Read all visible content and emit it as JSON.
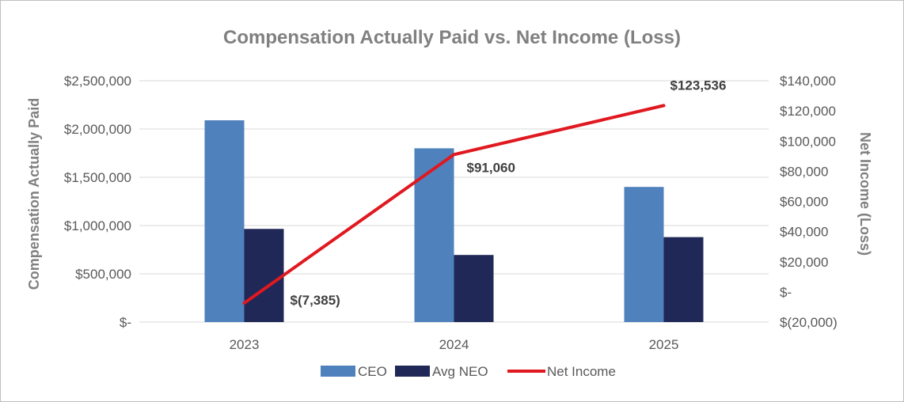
{
  "chart_data": {
    "type": "bar",
    "title": "Compensation Actually Paid vs. Net Income (Loss)",
    "categories": [
      "2023",
      "2024",
      "2025"
    ],
    "series": [
      {
        "name": "CEO",
        "type": "bar",
        "axis": "left",
        "color": "#4f81bd",
        "values": [
          2090000,
          1800000,
          1400000
        ]
      },
      {
        "name": "Avg NEO",
        "type": "bar",
        "axis": "left",
        "color": "#1f2856",
        "values": [
          965000,
          695000,
          880000
        ]
      },
      {
        "name": "Net Income",
        "type": "line",
        "axis": "right",
        "color": "#e0181f",
        "values": [
          -7385,
          91060,
          123536
        ],
        "labels": [
          "$(7,385)",
          "$91,060",
          "$123,536"
        ]
      }
    ],
    "ylabel": "Compensation Actually Paid",
    "y2label": "Net Income (Loss)",
    "ylim": [
      0,
      2500000
    ],
    "y2lim": [
      -20000,
      140000
    ],
    "yticks": [
      "$-",
      "$500,000",
      "$1,000,000",
      "$1,500,000",
      "$2,000,000",
      "$2,500,000"
    ],
    "y2ticks": [
      "$(20,000)",
      "$-",
      "$20,000",
      "$40,000",
      "$60,000",
      "$80,000",
      "$100,000",
      "$120,000",
      "$140,000"
    ],
    "grid": true,
    "legend_position": "bottom"
  }
}
